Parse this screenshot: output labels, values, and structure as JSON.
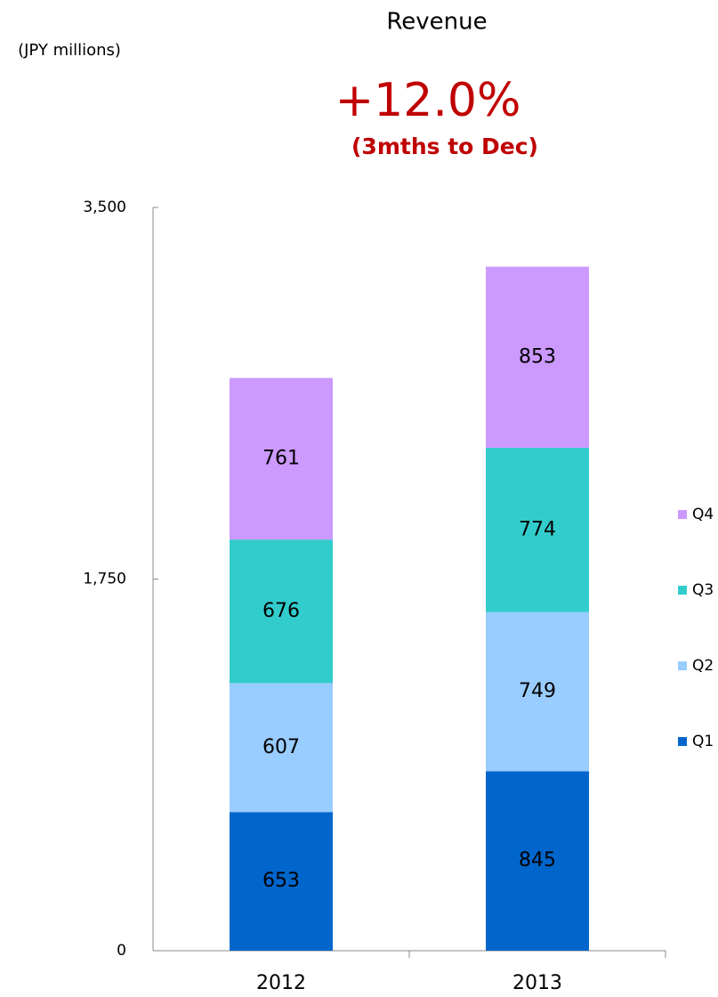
{
  "chart_data": {
    "type": "stacked_bar",
    "title": "Revenue",
    "y_label": "(JPY millions)",
    "annotations": [
      "+12.0%",
      "(3mths to Dec)"
    ],
    "categories": [
      "2012",
      "2013"
    ],
    "series": [
      {
        "name": "Q1",
        "color": "#0066cc",
        "values": [
          653,
          845
        ]
      },
      {
        "name": "Q2",
        "color": "#99ccff",
        "values": [
          607,
          749
        ]
      },
      {
        "name": "Q3",
        "color": "#33cccc",
        "values": [
          676,
          774
        ]
      },
      {
        "name": "Q4",
        "color": "#cc99ff",
        "values": [
          761,
          853
        ]
      }
    ],
    "ylim": [
      0,
      3500
    ],
    "yticks": [
      0,
      {
        "value": 1750,
        "label": "1,750"
      },
      {
        "value": 3500,
        "label": "3,500"
      }
    ],
    "legend": "right"
  }
}
